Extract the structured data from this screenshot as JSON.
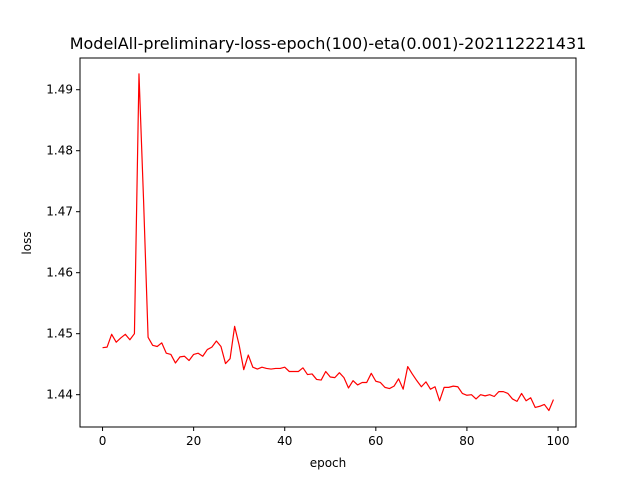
{
  "chart_data": {
    "type": "line",
    "title": "ModelAll-preliminary-loss-epoch(100)-eta(0.001)-202112221431",
    "xlabel": "epoch",
    "ylabel": "loss",
    "xlim": [
      -4.95,
      103.95
    ],
    "ylim": [
      1.4347,
      1.4952
    ],
    "xticks": [
      0,
      20,
      40,
      60,
      80,
      100
    ],
    "yticks": [
      1.44,
      1.45,
      1.46,
      1.47,
      1.48,
      1.49
    ],
    "grid": false,
    "legend": "none",
    "series": [
      {
        "color": "#ff0000",
        "x": [
          0,
          1,
          2,
          3,
          4,
          5,
          6,
          7,
          8,
          9,
          10,
          11,
          12,
          13,
          14,
          15,
          16,
          17,
          18,
          19,
          20,
          21,
          22,
          23,
          24,
          25,
          26,
          27,
          28,
          29,
          30,
          31,
          32,
          33,
          34,
          35,
          36,
          37,
          38,
          39,
          40,
          41,
          42,
          43,
          44,
          45,
          46,
          47,
          48,
          49,
          50,
          51,
          52,
          53,
          54,
          55,
          56,
          57,
          58,
          59,
          60,
          61,
          62,
          63,
          64,
          65,
          66,
          67,
          68,
          69,
          70,
          71,
          72,
          73,
          74,
          75,
          76,
          77,
          78,
          79,
          80,
          81,
          82,
          83,
          84,
          85,
          86,
          87,
          88,
          89,
          90,
          91,
          92,
          93,
          94,
          95,
          96,
          97,
          98,
          99
        ],
        "values": [
          1.4477,
          1.4478,
          1.4499,
          1.4486,
          1.4493,
          1.4499,
          1.449,
          1.45,
          1.4926,
          1.472,
          1.4494,
          1.4481,
          1.4479,
          1.4485,
          1.4468,
          1.4466,
          1.4452,
          1.4462,
          1.4463,
          1.4456,
          1.4466,
          1.4468,
          1.4463,
          1.4474,
          1.4478,
          1.4488,
          1.4479,
          1.4451,
          1.4459,
          1.4512,
          1.4481,
          1.4441,
          1.4465,
          1.4445,
          1.4442,
          1.4445,
          1.4443,
          1.4442,
          1.4443,
          1.4443,
          1.4445,
          1.4438,
          1.4438,
          1.4438,
          1.4444,
          1.4433,
          1.4434,
          1.4425,
          1.4424,
          1.4438,
          1.4429,
          1.4428,
          1.4436,
          1.4428,
          1.4411,
          1.4423,
          1.4416,
          1.442,
          1.442,
          1.4435,
          1.4422,
          1.442,
          1.4412,
          1.441,
          1.4414,
          1.4426,
          1.4409,
          1.4446,
          1.4434,
          1.4423,
          1.4413,
          1.4421,
          1.4409,
          1.4413,
          1.439,
          1.4412,
          1.4412,
          1.4414,
          1.4413,
          1.4402,
          1.4399,
          1.44,
          1.4393,
          1.44,
          1.4398,
          1.44,
          1.4397,
          1.4405,
          1.4405,
          1.4402,
          1.4393,
          1.4389,
          1.4402,
          1.439,
          1.4395,
          1.4379,
          1.4381,
          1.4384,
          1.4374,
          1.4392
        ]
      }
    ]
  }
}
